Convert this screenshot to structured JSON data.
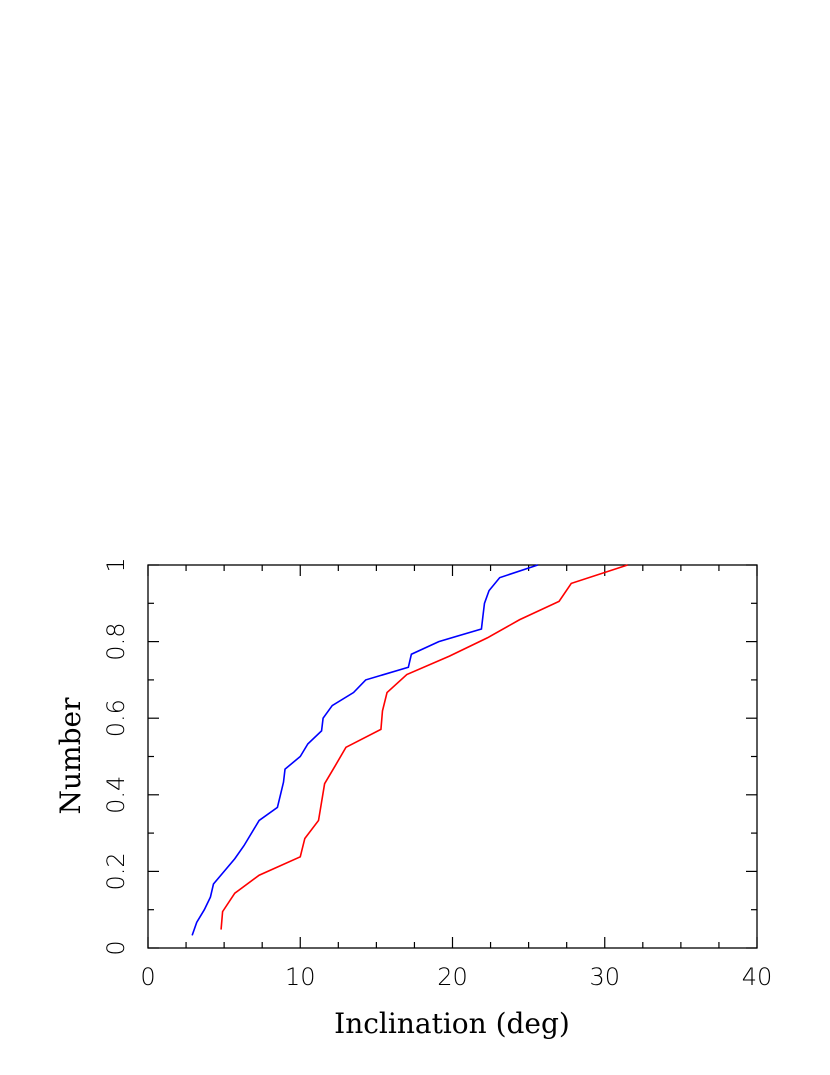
{
  "chart_data": {
    "type": "line",
    "title": "",
    "xlabel": "Inclination (deg)",
    "ylabel": "Number",
    "xlim": [
      0,
      40
    ],
    "ylim": [
      0,
      1
    ],
    "x_ticks": [
      0,
      10,
      20,
      30,
      40
    ],
    "x_tick_labels": [
      "0",
      "10",
      "20",
      "30",
      "40"
    ],
    "y_ticks": [
      0,
      0.2,
      0.4,
      0.6,
      0.8,
      1
    ],
    "y_tick_labels": [
      "0",
      "0.2",
      "0.4",
      "0.6",
      "0.8",
      "1"
    ],
    "grid": false,
    "series": [
      {
        "color": "#0000ff",
        "points": [
          [
            2.9,
            0.033
          ],
          [
            3.2,
            0.067
          ],
          [
            3.7,
            0.1
          ],
          [
            4.1,
            0.133
          ],
          [
            4.3,
            0.167
          ],
          [
            5.0,
            0.2
          ],
          [
            5.7,
            0.233
          ],
          [
            6.3,
            0.267
          ],
          [
            7.3,
            0.333
          ],
          [
            8.5,
            0.367
          ],
          [
            8.7,
            0.4
          ],
          [
            8.9,
            0.433
          ],
          [
            9.0,
            0.467
          ],
          [
            10.0,
            0.5
          ],
          [
            10.5,
            0.533
          ],
          [
            11.4,
            0.567
          ],
          [
            11.5,
            0.6
          ],
          [
            12.1,
            0.633
          ],
          [
            13.5,
            0.667
          ],
          [
            14.3,
            0.7
          ],
          [
            17.1,
            0.733
          ],
          [
            17.3,
            0.767
          ],
          [
            19.1,
            0.8
          ],
          [
            21.9,
            0.833
          ],
          [
            22.0,
            0.867
          ],
          [
            22.1,
            0.9
          ],
          [
            22.4,
            0.933
          ],
          [
            23.1,
            0.967
          ],
          [
            25.6,
            1.0
          ]
        ]
      },
      {
        "color": "#ff0000",
        "points": [
          [
            4.8,
            0.048
          ],
          [
            4.9,
            0.095
          ],
          [
            5.7,
            0.143
          ],
          [
            7.3,
            0.19
          ],
          [
            10.0,
            0.238
          ],
          [
            10.3,
            0.286
          ],
          [
            11.2,
            0.333
          ],
          [
            11.6,
            0.429
          ],
          [
            12.3,
            0.476
          ],
          [
            13.0,
            0.524
          ],
          [
            15.3,
            0.571
          ],
          [
            15.4,
            0.619
          ],
          [
            15.7,
            0.667
          ],
          [
            17.0,
            0.714
          ],
          [
            19.8,
            0.762
          ],
          [
            22.3,
            0.81
          ],
          [
            24.4,
            0.857
          ],
          [
            27.0,
            0.905
          ],
          [
            27.8,
            0.952
          ],
          [
            31.5,
            1.0
          ]
        ]
      }
    ]
  }
}
